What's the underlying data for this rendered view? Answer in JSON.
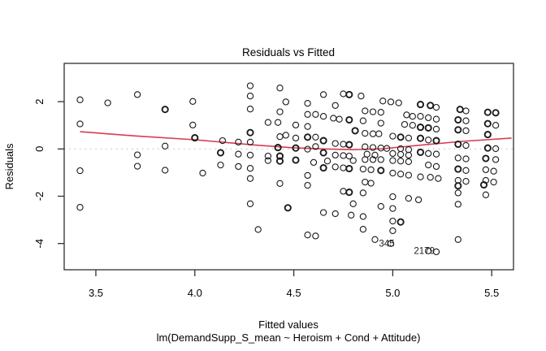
{
  "chart_data": {
    "type": "scatter",
    "title": "Residuals vs Fitted",
    "xlabel": "Fitted values",
    "ylabel": "Residuals",
    "model_formula": "lm(DemandSupp_S_mean ~ Heroism + Cond + Attitude)",
    "xlim": [
      3.34,
      5.61
    ],
    "ylim": [
      -5.11,
      3.62
    ],
    "x_tick_values": [
      3.5,
      4.0,
      4.5,
      5.0,
      5.5
    ],
    "x_tick_labels": [
      "3.5",
      "4.0",
      "4.5",
      "5.0",
      "5.5"
    ],
    "y_tick_values": [
      -4,
      -2,
      0,
      2
    ],
    "y_tick_labels": [
      "-4",
      "-2",
      "0",
      "2"
    ],
    "grid": "off",
    "legend": "none",
    "zero_line_y": 0,
    "colors": {
      "points": "#1a1a1a",
      "smoother": "#d93b52",
      "zero_line": "#b9b9b9",
      "axis": "#303030",
      "text": "#000000",
      "background": "#ffffff"
    },
    "smoother_points": [
      [
        3.42,
        0.73
      ],
      [
        3.7,
        0.55
      ],
      [
        4.0,
        0.39
      ],
      [
        4.15,
        0.28
      ],
      [
        4.3,
        0.17
      ],
      [
        4.5,
        0.05
      ],
      [
        4.65,
        0.0
      ],
      [
        4.8,
        -0.03
      ],
      [
        4.95,
        0.01
      ],
      [
        5.15,
        0.17
      ],
      [
        5.35,
        0.32
      ],
      [
        5.6,
        0.46
      ]
    ],
    "labeled_points": [
      {
        "label": "345",
        "x": 4.99,
        "y": -4.0
      },
      {
        "label": "2179",
        "x": 5.18,
        "y": -4.31
      }
    ],
    "points": [
      [
        3.42,
        2.08
      ],
      [
        3.56,
        1.95
      ],
      [
        3.71,
        2.3
      ],
      [
        3.85,
        1.67,
        2
      ],
      [
        3.99,
        2.01
      ],
      [
        3.42,
        1.06
      ],
      [
        3.99,
        1.01
      ],
      [
        4.0,
        0.47,
        2
      ],
      [
        3.85,
        0.12
      ],
      [
        3.71,
        -0.25
      ],
      [
        3.71,
        -0.73
      ],
      [
        3.42,
        -0.92
      ],
      [
        3.85,
        -0.9
      ],
      [
        4.04,
        -1.02
      ],
      [
        3.42,
        -2.47
      ],
      [
        4.28,
        2.67
      ],
      [
        4.43,
        2.58
      ],
      [
        4.28,
        2.24
      ],
      [
        4.46,
        1.99
      ],
      [
        4.57,
        1.93
      ],
      [
        4.28,
        1.69
      ],
      [
        4.43,
        1.57
      ],
      [
        4.57,
        1.46
      ],
      [
        4.61,
        1.46
      ],
      [
        4.37,
        1.12
      ],
      [
        4.42,
        1.12
      ],
      [
        4.51,
        1.01
      ],
      [
        4.57,
        0.95
      ],
      [
        4.28,
        0.69,
        2
      ],
      [
        4.46,
        0.58
      ],
      [
        4.43,
        0.52
      ],
      [
        4.51,
        0.46
      ],
      [
        4.57,
        0.5,
        2
      ],
      [
        4.61,
        0.5
      ],
      [
        4.14,
        0.35
      ],
      [
        4.22,
        0.29
      ],
      [
        4.28,
        0.29
      ],
      [
        4.42,
        0.06,
        2
      ],
      [
        4.51,
        0.04,
        2
      ],
      [
        4.57,
        -0.01
      ],
      [
        4.61,
        0.1
      ],
      [
        4.13,
        -0.16,
        2
      ],
      [
        4.22,
        -0.22
      ],
      [
        4.28,
        -0.26
      ],
      [
        4.37,
        -0.3
      ],
      [
        4.43,
        -0.3,
        2
      ],
      [
        4.13,
        -0.68
      ],
      [
        4.22,
        -0.74
      ],
      [
        4.28,
        -0.82
      ],
      [
        4.37,
        -0.49
      ],
      [
        4.43,
        -0.51,
        2
      ],
      [
        4.51,
        -0.47,
        2
      ],
      [
        4.6,
        -0.57
      ],
      [
        4.28,
        -1.25
      ],
      [
        4.43,
        -1.46
      ],
      [
        4.57,
        -1.12
      ],
      [
        4.57,
        -1.54
      ],
      [
        4.28,
        -2.32
      ],
      [
        4.47,
        -2.49,
        2
      ],
      [
        4.32,
        -3.41
      ],
      [
        4.57,
        -3.64
      ],
      [
        4.61,
        -3.68
      ],
      [
        4.65,
        2.3
      ],
      [
        4.75,
        2.33
      ],
      [
        4.78,
        2.3,
        2
      ],
      [
        4.84,
        2.24
      ],
      [
        4.95,
        2.03
      ],
      [
        4.99,
        1.99
      ],
      [
        5.03,
        1.95
      ],
      [
        4.71,
        1.84
      ],
      [
        4.86,
        1.61
      ],
      [
        4.9,
        1.57
      ],
      [
        4.94,
        1.55
      ],
      [
        4.65,
        1.38
      ],
      [
        5.07,
        1.44
      ],
      [
        5.1,
        1.38
      ],
      [
        4.7,
        1.3
      ],
      [
        4.73,
        1.26
      ],
      [
        4.78,
        1.23,
        2
      ],
      [
        4.85,
        1.19
      ],
      [
        4.94,
        1.09
      ],
      [
        5.06,
        1.04
      ],
      [
        5.1,
        1.0
      ],
      [
        4.81,
        0.77,
        2
      ],
      [
        4.86,
        0.66
      ],
      [
        4.9,
        0.64
      ],
      [
        4.93,
        0.64
      ],
      [
        5.0,
        0.54
      ],
      [
        5.04,
        0.5,
        2
      ],
      [
        5.08,
        0.46
      ],
      [
        4.65,
        0.35,
        2
      ],
      [
        4.71,
        0.23
      ],
      [
        4.75,
        0.2
      ],
      [
        4.78,
        0.18,
        2
      ],
      [
        4.86,
        0.09
      ],
      [
        4.9,
        0.06
      ],
      [
        4.94,
        0.04
      ],
      [
        4.97,
        0.02
      ],
      [
        5.04,
        0.01
      ],
      [
        5.08,
        -0.03
      ],
      [
        4.65,
        -0.16,
        2
      ],
      [
        4.71,
        -0.26
      ],
      [
        4.75,
        -0.28
      ],
      [
        4.78,
        -0.3
      ],
      [
        4.87,
        -0.22
      ],
      [
        4.91,
        -0.26
      ],
      [
        5.0,
        -0.19
      ],
      [
        5.04,
        -0.23
      ],
      [
        5.08,
        -0.26
      ],
      [
        4.67,
        -0.51
      ],
      [
        4.65,
        -0.8,
        2
      ],
      [
        4.71,
        -0.76
      ],
      [
        4.75,
        -0.8
      ],
      [
        4.78,
        -0.83,
        2
      ],
      [
        4.8,
        -0.49
      ],
      [
        4.86,
        -0.45
      ],
      [
        4.9,
        -0.45
      ],
      [
        4.94,
        -0.45
      ],
      [
        5.0,
        -0.49
      ],
      [
        5.04,
        -0.51
      ],
      [
        5.08,
        -0.54
      ],
      [
        4.85,
        -0.85
      ],
      [
        4.89,
        -0.88
      ],
      [
        4.94,
        -0.91,
        2
      ],
      [
        5.0,
        -1.02
      ],
      [
        5.04,
        -1.06
      ],
      [
        5.08,
        -1.11
      ],
      [
        5.14,
        -1.18
      ],
      [
        4.86,
        -1.4
      ],
      [
        4.89,
        -1.45
      ],
      [
        4.75,
        -1.79
      ],
      [
        4.78,
        -1.83,
        2
      ],
      [
        4.85,
        -1.86
      ],
      [
        5.0,
        -2.02
      ],
      [
        5.08,
        -2.09
      ],
      [
        5.13,
        -2.15
      ],
      [
        4.8,
        -2.32
      ],
      [
        4.94,
        -2.43
      ],
      [
        4.65,
        -2.69
      ],
      [
        4.71,
        -2.74
      ],
      [
        5.0,
        -2.52
      ],
      [
        4.79,
        -2.8
      ],
      [
        4.85,
        -2.86
      ],
      [
        5.0,
        -3.05
      ],
      [
        5.04,
        -3.09,
        2
      ],
      [
        4.85,
        -3.4
      ],
      [
        5.0,
        -3.46
      ],
      [
        4.91,
        -3.83
      ],
      [
        5.14,
        1.88,
        2
      ],
      [
        5.19,
        1.84,
        2
      ],
      [
        5.22,
        1.76
      ],
      [
        5.34,
        1.67,
        2
      ],
      [
        5.37,
        1.61
      ],
      [
        5.48,
        1.55,
        2
      ],
      [
        5.52,
        1.53,
        2
      ],
      [
        5.14,
        1.38
      ],
      [
        5.18,
        1.32
      ],
      [
        5.22,
        1.26
      ],
      [
        5.33,
        1.23,
        2
      ],
      [
        5.37,
        1.19
      ],
      [
        5.48,
        1.07,
        2
      ],
      [
        5.52,
        1.0
      ],
      [
        5.14,
        0.92,
        2
      ],
      [
        5.18,
        0.89,
        2
      ],
      [
        5.22,
        0.84
      ],
      [
        5.33,
        0.81,
        2
      ],
      [
        5.37,
        0.77
      ],
      [
        5.48,
        0.61,
        2
      ],
      [
        5.14,
        0.45,
        2
      ],
      [
        5.18,
        0.38
      ],
      [
        5.22,
        0.35,
        2
      ],
      [
        5.33,
        0.2,
        2
      ],
      [
        5.37,
        0.15
      ],
      [
        5.48,
        0.04,
        2
      ],
      [
        5.52,
        0.01
      ],
      [
        5.14,
        -0.14,
        2
      ],
      [
        5.18,
        -0.19
      ],
      [
        5.22,
        -0.22
      ],
      [
        5.33,
        -0.38
      ],
      [
        5.37,
        -0.42
      ],
      [
        5.47,
        -0.4,
        2
      ],
      [
        5.52,
        -0.45
      ],
      [
        5.18,
        -0.68
      ],
      [
        5.22,
        -0.74
      ],
      [
        5.33,
        -0.85,
        2
      ],
      [
        5.37,
        -0.91
      ],
      [
        5.47,
        -0.88
      ],
      [
        5.51,
        -0.94
      ],
      [
        5.19,
        -1.2
      ],
      [
        5.23,
        -1.25
      ],
      [
        5.33,
        -1.33
      ],
      [
        5.37,
        -1.37
      ],
      [
        5.47,
        -1.33
      ],
      [
        5.51,
        -1.4
      ],
      [
        5.33,
        -1.56,
        2
      ],
      [
        5.46,
        -1.52,
        2
      ],
      [
        5.33,
        -1.86
      ],
      [
        5.47,
        -1.94
      ],
      [
        5.33,
        -2.34
      ],
      [
        5.33,
        -3.83
      ],
      [
        5.22,
        -4.35
      ]
    ]
  }
}
